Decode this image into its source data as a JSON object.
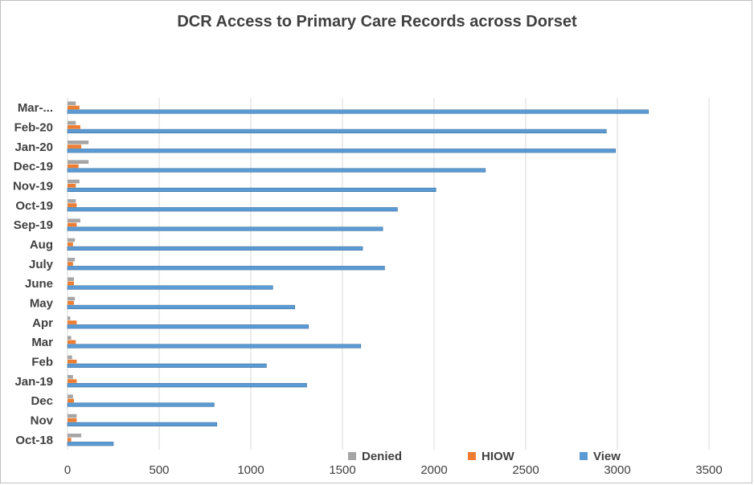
{
  "chart_data": {
    "type": "bar",
    "orientation": "horizontal",
    "title": "DCR Access to Primary Care Records across Dorset",
    "xlabel": "",
    "ylabel": "",
    "xlim": [
      0,
      3500
    ],
    "x_ticks": [
      "0",
      "500",
      "1000",
      "1500",
      "2000",
      "2500",
      "3000",
      "3500"
    ],
    "grid": "vertical",
    "legend_position": "bottom-right",
    "categories": [
      "Mar-...",
      "Feb-20",
      "Jan-20",
      "Dec-19",
      "Nov-19",
      "Oct-19",
      "Sep-19",
      "Aug",
      "July",
      "June",
      "May",
      "Apr",
      "Mar",
      "Feb",
      "Jan-19",
      "Dec",
      "Nov",
      "Oct-18"
    ],
    "series": [
      {
        "name": "Denied",
        "color": "#a5a5a5",
        "values": [
          45,
          45,
          115,
          115,
          65,
          45,
          70,
          40,
          40,
          35,
          40,
          15,
          20,
          25,
          30,
          30,
          50,
          75
        ]
      },
      {
        "name": "HIOW",
        "color": "#ed7d31",
        "values": [
          65,
          70,
          75,
          60,
          45,
          50,
          50,
          30,
          30,
          35,
          35,
          50,
          45,
          50,
          50,
          35,
          50,
          20
        ]
      },
      {
        "name": "View",
        "color": "#5b9bd5",
        "values": [
          3170,
          2940,
          2990,
          2280,
          2010,
          1800,
          1720,
          1610,
          1730,
          1120,
          1240,
          1315,
          1600,
          1085,
          1305,
          800,
          815,
          250
        ]
      }
    ]
  }
}
